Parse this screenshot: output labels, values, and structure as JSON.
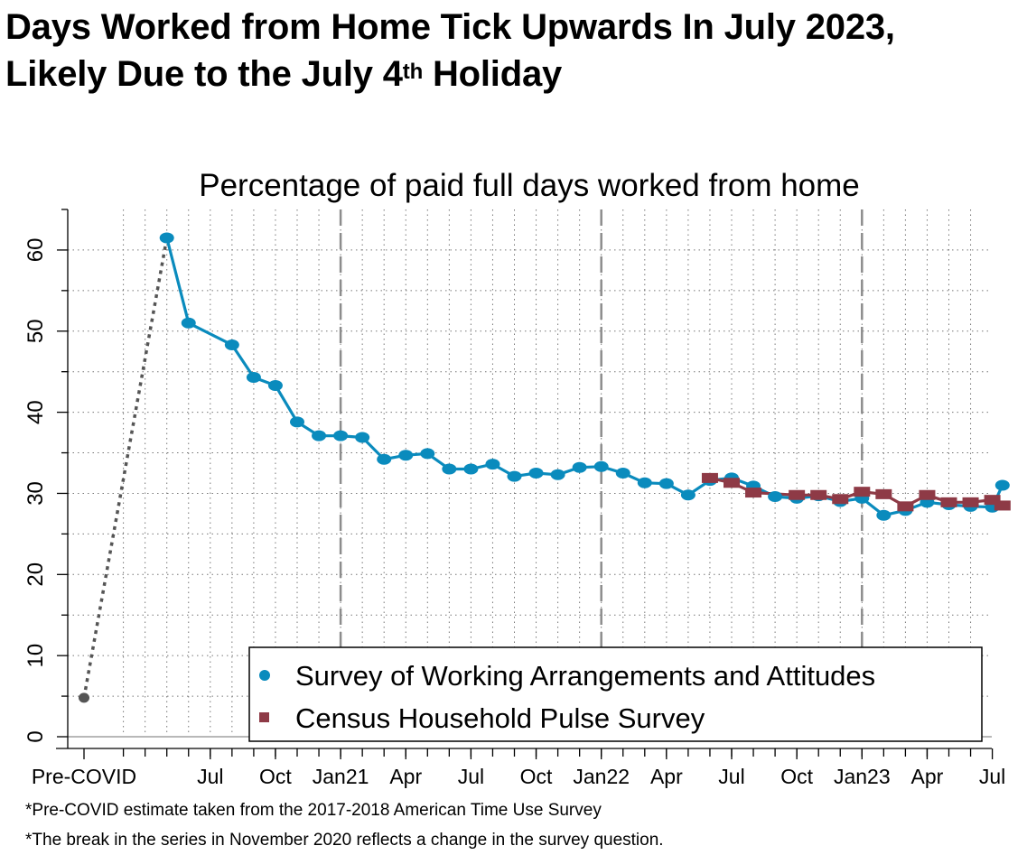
{
  "headline": {
    "line1": "Days Worked from Home Tick Upwards In July 2023,",
    "line2_pre": "Likely Due to the July 4",
    "line2_sup": "th",
    "line2_post": " Holiday"
  },
  "footnotes": [
    "*Pre-COVID estimate taken from the 2017-2018 American Time Use Survey",
    "*The break in the series in November 2020 reflects a change in the survey question."
  ],
  "chart_data": {
    "type": "line",
    "title": "Percentage of paid full days worked from home",
    "xlabel": "",
    "ylabel": "",
    "ylim": [
      0,
      65
    ],
    "y_ticks": [
      0,
      10,
      20,
      30,
      40,
      50,
      60
    ],
    "x_ticks": [
      "Pre-COVID",
      "Jul",
      "Oct",
      "Jan21",
      "Apr",
      "Jul",
      "Oct",
      "Jan22",
      "Apr",
      "Jul",
      "Oct",
      "Jan23",
      "Apr",
      "Jul"
    ],
    "grid": true,
    "legend_position": "bottom-right",
    "colors": {
      "swaa": "#0a8bbd",
      "pulse": "#8e3a46",
      "precovid": "#555555",
      "divider": "#8c8c8c"
    },
    "precovid": {
      "x": "Pre-COVID",
      "y": 4.8
    },
    "series": [
      {
        "name": "Survey of Working Arrangements and Attitudes",
        "points": [
          [
            "2020-05",
            61.5
          ],
          [
            "2020-06",
            51.0
          ],
          [
            "2020-08",
            48.3
          ],
          [
            "2020-09",
            44.3
          ],
          [
            "2020-10",
            43.3
          ],
          [
            "2020-11",
            38.8
          ],
          [
            "2020-12",
            37.1
          ],
          [
            "2021-01",
            37.1
          ],
          [
            "2021-02",
            36.9
          ],
          [
            "2021-03",
            34.2
          ],
          [
            "2021-04",
            34.7
          ],
          [
            "2021-05",
            34.9
          ],
          [
            "2021-06",
            33.0
          ],
          [
            "2021-07",
            33.0
          ],
          [
            "2021-08",
            33.6
          ],
          [
            "2021-09",
            32.1
          ],
          [
            "2021-10",
            32.5
          ],
          [
            "2021-11",
            32.3
          ],
          [
            "2021-12",
            33.2
          ],
          [
            "2022-01",
            33.3
          ],
          [
            "2022-02",
            32.5
          ],
          [
            "2022-03",
            31.3
          ],
          [
            "2022-04",
            31.2
          ],
          [
            "2022-05",
            29.8
          ],
          [
            "2022-06",
            31.6
          ],
          [
            "2022-07",
            31.9
          ],
          [
            "2022-08",
            30.9
          ],
          [
            "2022-09",
            29.6
          ],
          [
            "2022-10",
            29.4
          ],
          [
            "2022-11",
            29.7
          ],
          [
            "2022-12",
            29.0
          ],
          [
            "2023-01",
            29.4
          ],
          [
            "2023-02",
            27.3
          ],
          [
            "2023-03",
            27.9
          ],
          [
            "2023-04",
            28.9
          ],
          [
            "2023-05",
            28.6
          ],
          [
            "2023-06",
            28.4
          ],
          [
            "2023-07",
            28.3
          ],
          [
            "2023-07-15",
            31.0
          ]
        ]
      },
      {
        "name": "Census Household Pulse Survey",
        "points": [
          [
            "2022-06",
            31.9
          ],
          [
            "2022-07",
            31.3
          ],
          [
            "2022-08",
            30.1
          ],
          [
            "2022-10",
            29.8
          ],
          [
            "2022-11",
            29.8
          ],
          [
            "2022-12",
            29.3
          ],
          [
            "2023-01",
            30.2
          ],
          [
            "2023-02",
            29.9
          ],
          [
            "2023-03",
            28.4
          ],
          [
            "2023-04",
            29.8
          ],
          [
            "2023-05",
            28.9
          ],
          [
            "2023-06",
            28.9
          ],
          [
            "2023-07",
            29.2
          ],
          [
            "2023-07-15",
            28.5
          ]
        ]
      }
    ]
  }
}
